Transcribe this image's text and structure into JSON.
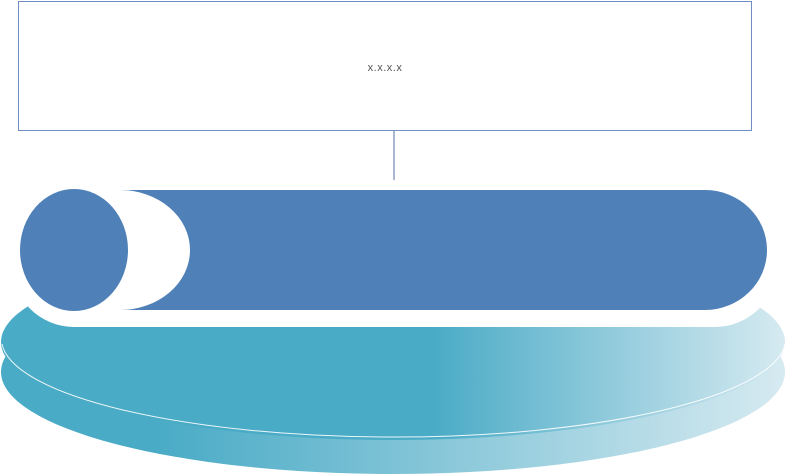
{
  "callout": {
    "text": "x.x.x.x"
  },
  "colors": {
    "box_border": "#6f8fc2",
    "connector": "#4f6fa8",
    "pill_fill": "#4f81b8",
    "pill_outline": "#ffffff",
    "disc_main": "#4aabc6",
    "disc_fade": "#d6eaf1"
  }
}
